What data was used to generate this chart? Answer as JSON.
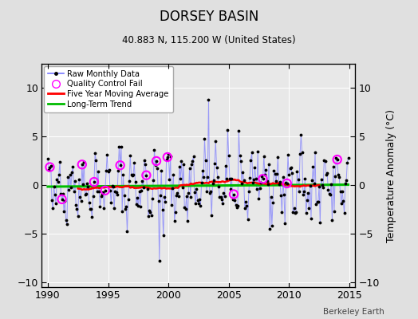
{
  "title": "DORSEY BASIN",
  "subtitle": "40.883 N, 115.200 W (United States)",
  "ylabel": "Temperature Anomaly (°C)",
  "watermark": "Berkeley Earth",
  "xlim": [
    1989.5,
    2015.5
  ],
  "ylim": [
    -10.5,
    12.5
  ],
  "yticks": [
    -10,
    -5,
    0,
    5,
    10
  ],
  "xticks": [
    1990,
    1995,
    2000,
    2005,
    2010,
    2015
  ],
  "bg_color": "#e0e0e0",
  "plot_bg_color": "#e8e8e8",
  "raw_line_color": "#7777ff",
  "raw_line_alpha": 0.7,
  "raw_marker_color": "black",
  "qc_fail_color": "magenta",
  "moving_avg_color": "red",
  "trend_color": "#00bb00",
  "trend_slope": 0.008,
  "trend_intercept": -0.15,
  "seed": 42,
  "n_months": 300,
  "start_year": 1990.0
}
